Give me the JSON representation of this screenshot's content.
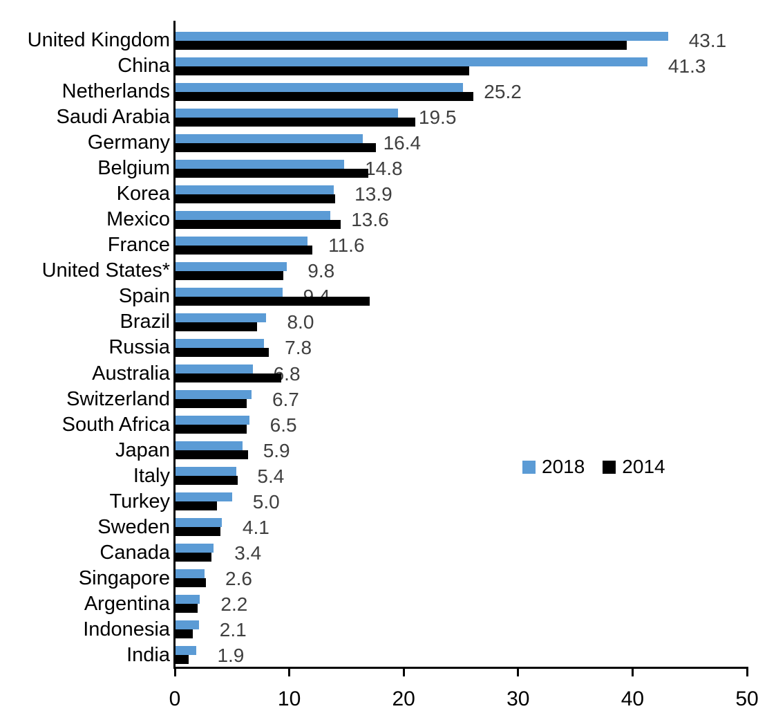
{
  "chart_data": {
    "type": "bar",
    "orientation": "horizontal",
    "title": "",
    "xlabel": "",
    "ylabel": "",
    "grid": false,
    "xlim": [
      0,
      50
    ],
    "x_ticks": [
      "0",
      "10",
      "20",
      "30",
      "40",
      "50"
    ],
    "x_tick_values": [
      0,
      10,
      20,
      30,
      40,
      50
    ],
    "legend_position": "center-right-inside",
    "categories": [
      "United Kingdom",
      "China",
      "Netherlands",
      "Saudi Arabia",
      "Germany",
      "Belgium",
      "Korea",
      "Mexico",
      "France",
      "United States*",
      "Spain",
      "Brazil",
      "Russia",
      "Australia",
      "Switzerland",
      "South Africa",
      "Japan",
      "Italy",
      "Turkey",
      "Sweden",
      "Canada",
      "Singapore",
      "Argentina",
      "Indonesia",
      "India"
    ],
    "series": [
      {
        "name": "2018",
        "color": "#5B9BD5",
        "values": [
          43.1,
          41.3,
          25.2,
          19.5,
          16.4,
          14.8,
          13.9,
          13.6,
          11.6,
          9.8,
          9.4,
          8.0,
          7.8,
          6.8,
          6.7,
          6.5,
          5.9,
          5.4,
          5.0,
          4.1,
          3.4,
          2.6,
          2.2,
          2.1,
          1.9
        ],
        "data_labels": [
          "43.1",
          "41.3",
          "25.2",
          "19.5",
          "16.4",
          "14.8",
          "13.9",
          "13.6",
          "11.6",
          "9.8",
          "9.4",
          "8.0",
          "7.8",
          "6.8",
          "6.7",
          "6.5",
          "5.9",
          "5.4",
          "5.0",
          "4.1",
          "3.4",
          "2.6",
          "2.2",
          "2.1",
          "1.9"
        ]
      },
      {
        "name": "2014",
        "color": "#000000",
        "values": [
          39.5,
          25.7,
          26.1,
          21.0,
          17.6,
          16.9,
          14.0,
          14.5,
          12.0,
          9.5,
          17.0,
          7.2,
          8.2,
          9.3,
          6.3,
          6.3,
          6.4,
          5.5,
          3.7,
          4.0,
          3.2,
          2.7,
          2.0,
          1.6,
          1.2
        ]
      }
    ],
    "data_label_color": "#3F3F3F",
    "axis_color": "#000000"
  }
}
